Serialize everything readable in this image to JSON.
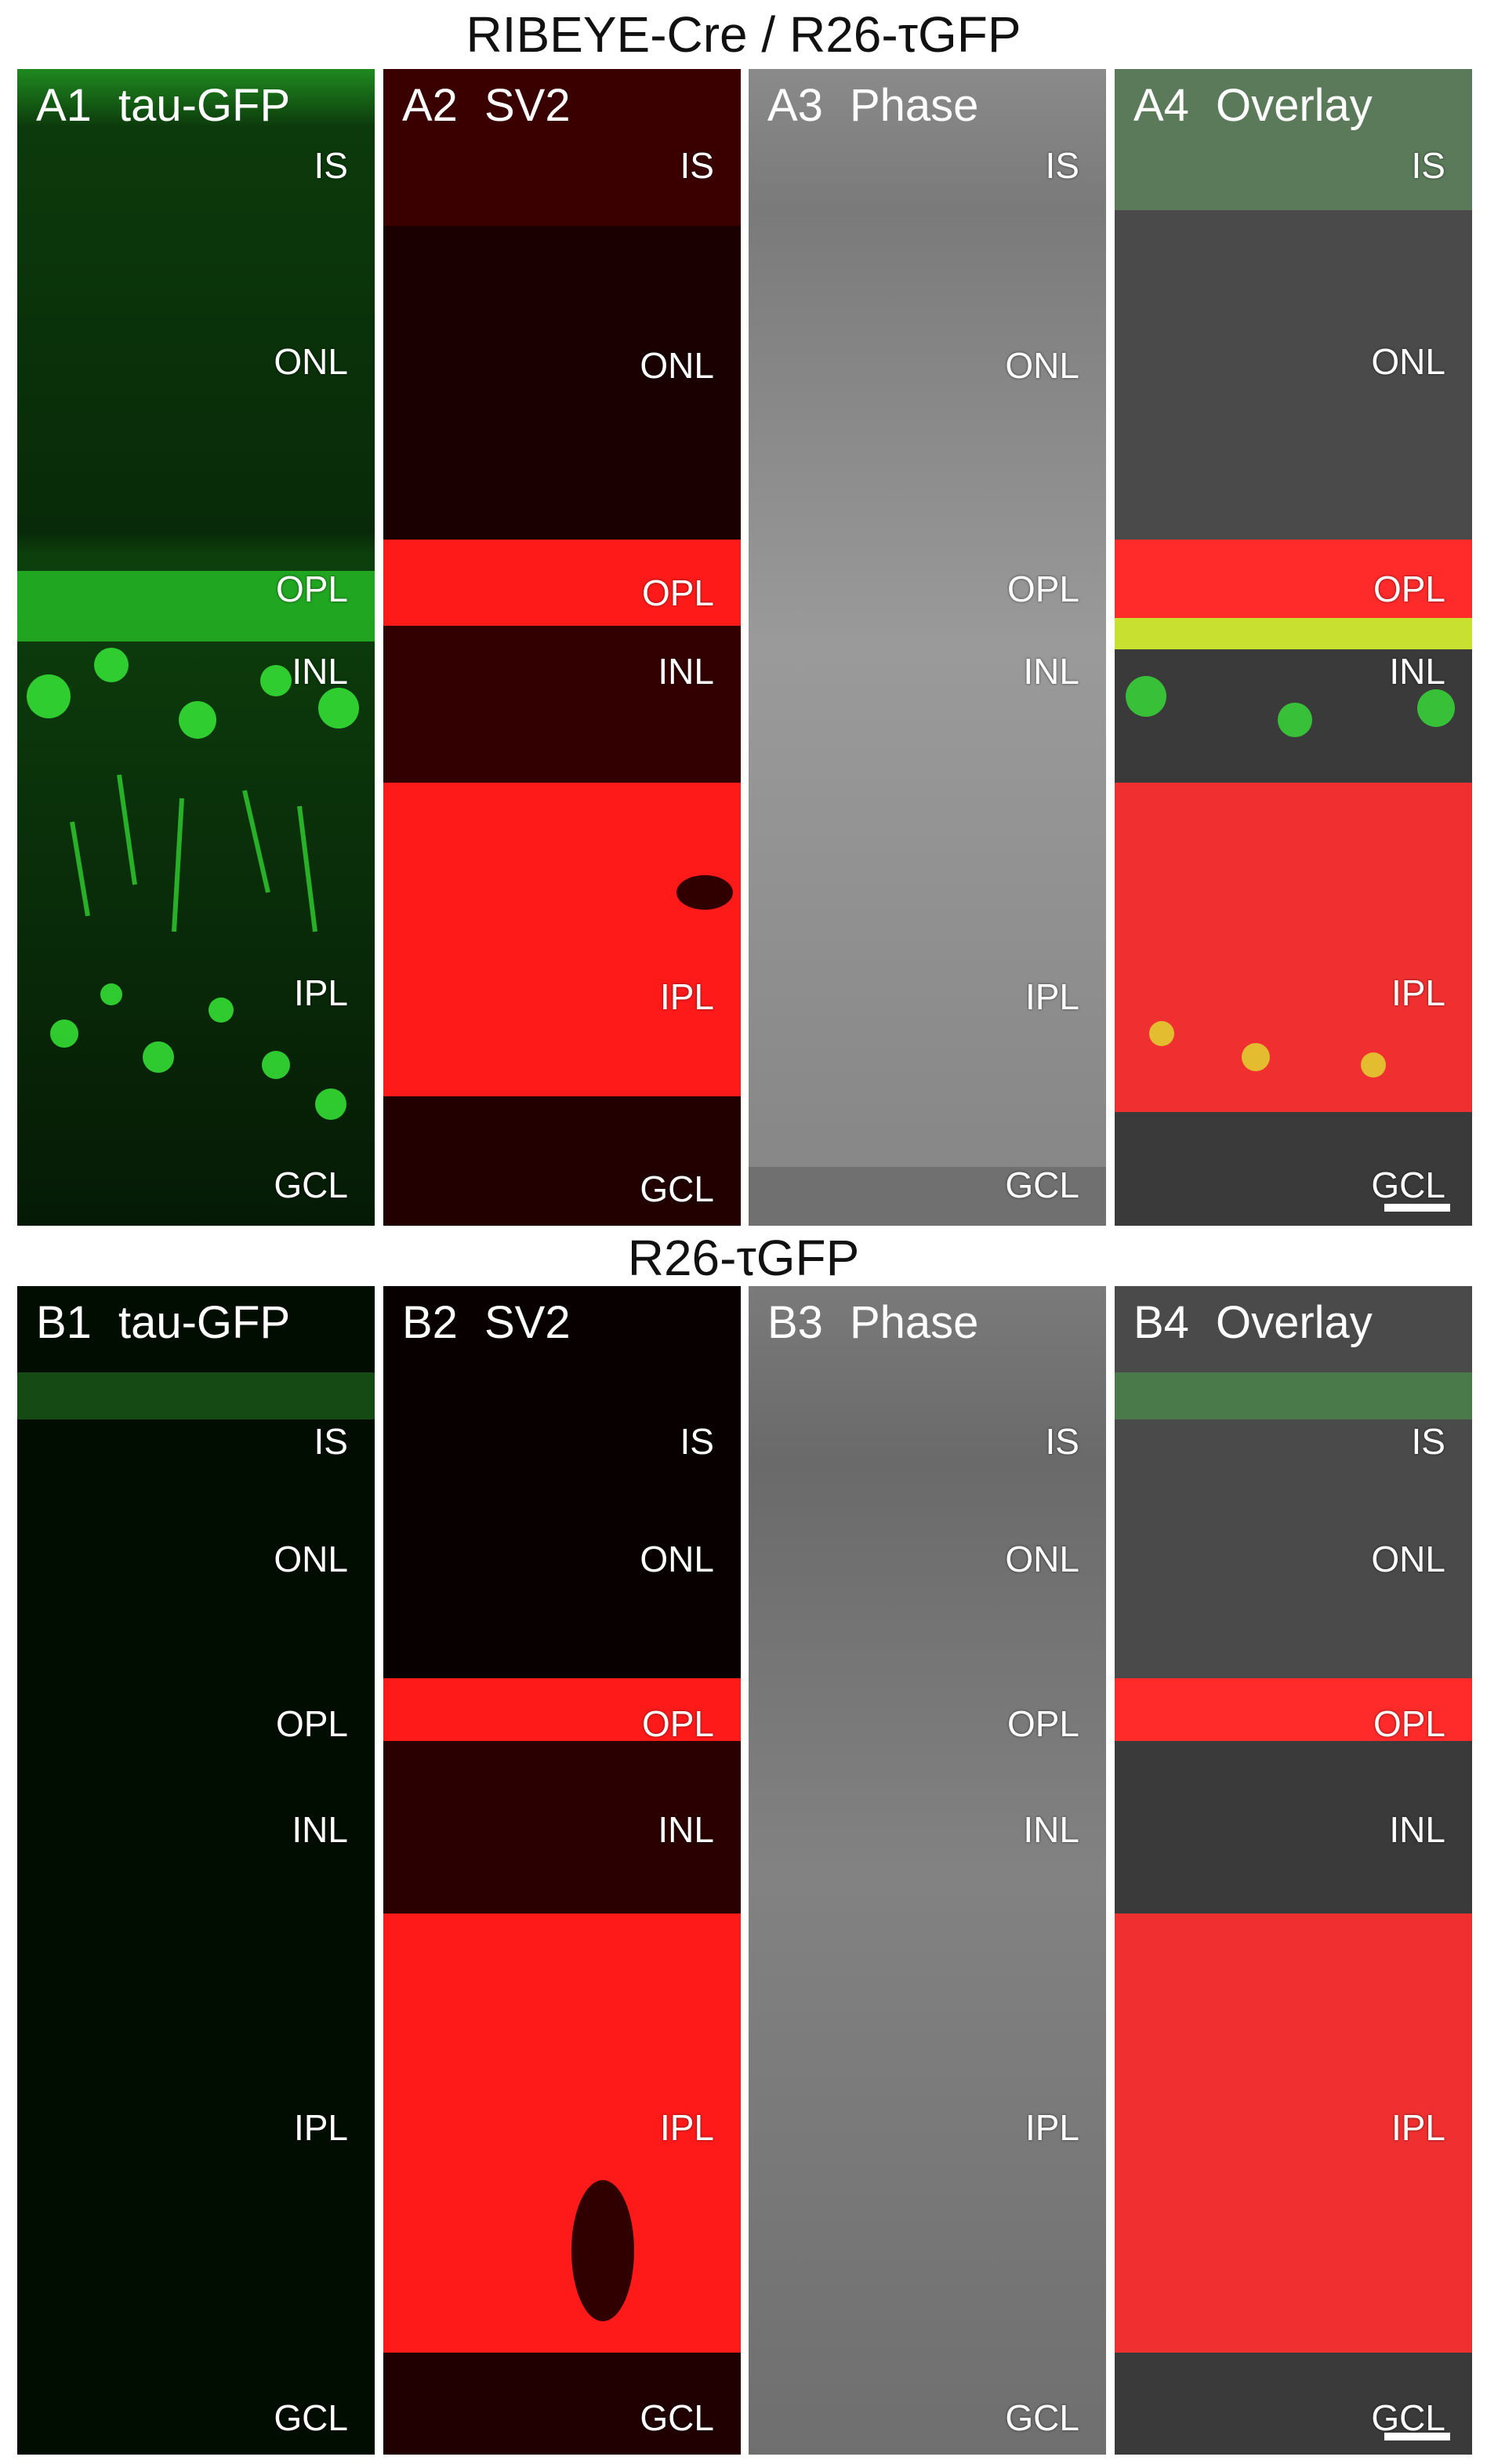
{
  "rows": [
    {
      "title": "RIBEYE-Cre / R26-τGFP",
      "panels": [
        {
          "id": "A1",
          "name": "tau-GFP"
        },
        {
          "id": "A2",
          "name": "SV2"
        },
        {
          "id": "A3",
          "name": "Phase"
        },
        {
          "id": "A4",
          "name": "Overlay"
        }
      ]
    },
    {
      "title": "R26-τGFP",
      "panels": [
        {
          "id": "B1",
          "name": "tau-GFP"
        },
        {
          "id": "B2",
          "name": "SV2"
        },
        {
          "id": "B3",
          "name": "Phase"
        },
        {
          "id": "B4",
          "name": "Overlay"
        }
      ]
    }
  ],
  "layers": [
    "IS",
    "ONL",
    "OPL",
    "INL",
    "IPL",
    "GCL"
  ],
  "colors": {
    "gfp": "#2fe82f",
    "sv2": "#ff1a1a",
    "phase": "#9a9a9a",
    "background": "#000000",
    "text": "#ffffff"
  }
}
